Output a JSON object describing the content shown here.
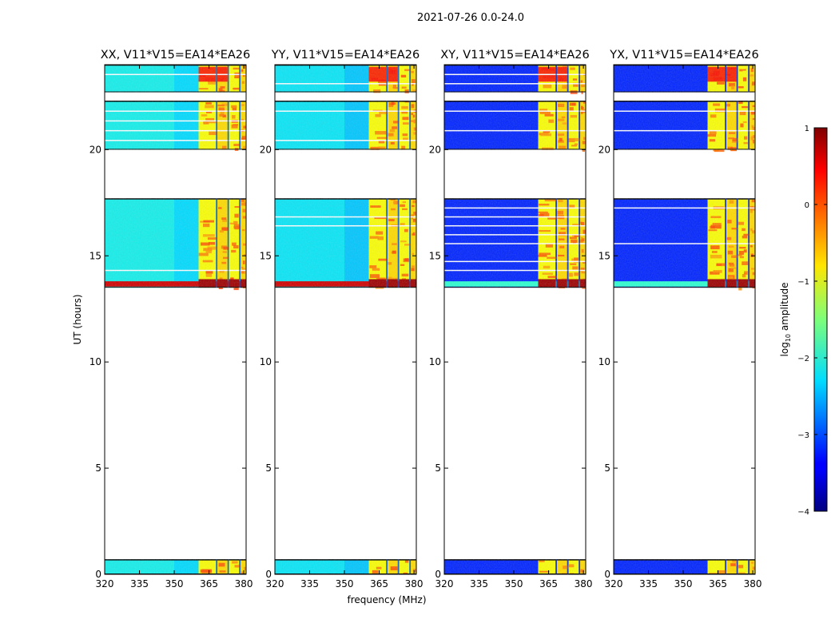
{
  "figure": {
    "suptitle": "2021-07-26 0.0-24.0",
    "xlabel": "frequency (MHz)",
    "ylabel": "UT (hours)"
  },
  "chart_data": {
    "type": "heatmap",
    "x_range_mhz": [
      320,
      381
    ],
    "y_range_hours": [
      0,
      24
    ],
    "x_ticks": [
      320,
      335,
      350,
      365,
      380
    ],
    "y_ticks": [
      0,
      5,
      10,
      15,
      20
    ],
    "panels": [
      {
        "title": "XX, V11*V15=EA14*EA26",
        "pol": "XX"
      },
      {
        "title": "YY, V11*V15=EA14*EA26",
        "pol": "YY"
      },
      {
        "title": "XY, V11*V15=EA14*EA26",
        "pol": "XY"
      },
      {
        "title": "YX, V11*V15=EA14*EA26",
        "pol": "YX"
      }
    ],
    "data_blocks_hours": [
      [
        0,
        0.7
      ],
      [
        13.5,
        17.7
      ],
      [
        20.0,
        22.3
      ],
      [
        22.7,
        24.0
      ]
    ],
    "rfi_bands_mhz": [
      [
        360.5,
        368.0
      ],
      [
        368.6,
        373.0
      ],
      [
        373.6,
        378.0
      ],
      [
        378.6,
        381.0
      ]
    ],
    "background_log_amplitude": {
      "XX": -2.3,
      "YY": -2.4,
      "XY": -3.2,
      "YX": -3.2
    },
    "colorbar": {
      "label": "log10 amplitude",
      "range": [
        -4,
        1
      ],
      "ticks": [
        1,
        0,
        -1,
        -2,
        -3,
        -4
      ],
      "tick_labels": [
        "1",
        "0",
        "−1",
        "−2",
        "−3",
        "−4"
      ],
      "colormap": "jet"
    }
  }
}
